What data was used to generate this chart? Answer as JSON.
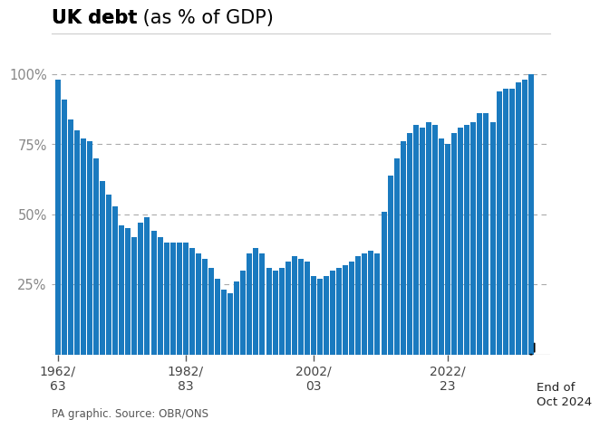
{
  "title_bold": "UK debt",
  "title_normal": " (as % of GDP)",
  "bar_color": "#1a7abf",
  "background_color": "#ffffff",
  "grid_color": "#aaaaaa",
  "source_text": "PA graphic. Source: OBR/ONS",
  "yticks": [
    25,
    50,
    75,
    100
  ],
  "ytick_labels": [
    "25%",
    "50%",
    "75%",
    "100%"
  ],
  "ylim": [
    0,
    108
  ],
  "x_tick_labels": [
    "1962/\n63",
    "1982/\n83",
    "2002/\n03",
    "2022/\n23"
  ],
  "end_label": "End of\nOct 2024",
  "values": [
    98,
    91,
    84,
    80,
    77,
    76,
    70,
    62,
    57,
    53,
    46,
    45,
    42,
    47,
    49,
    44,
    42,
    40,
    40,
    40,
    40,
    38,
    36,
    34,
    31,
    27,
    23,
    22,
    26,
    30,
    36,
    38,
    36,
    31,
    30,
    31,
    33,
    35,
    34,
    33,
    28,
    27,
    28,
    30,
    31,
    32,
    33,
    35,
    36,
    37,
    36,
    51,
    64,
    70,
    76,
    79,
    82,
    81,
    83,
    82,
    77,
    75,
    79,
    81,
    82,
    83,
    86,
    86,
    83,
    94,
    95,
    95,
    97,
    98,
    100
  ]
}
